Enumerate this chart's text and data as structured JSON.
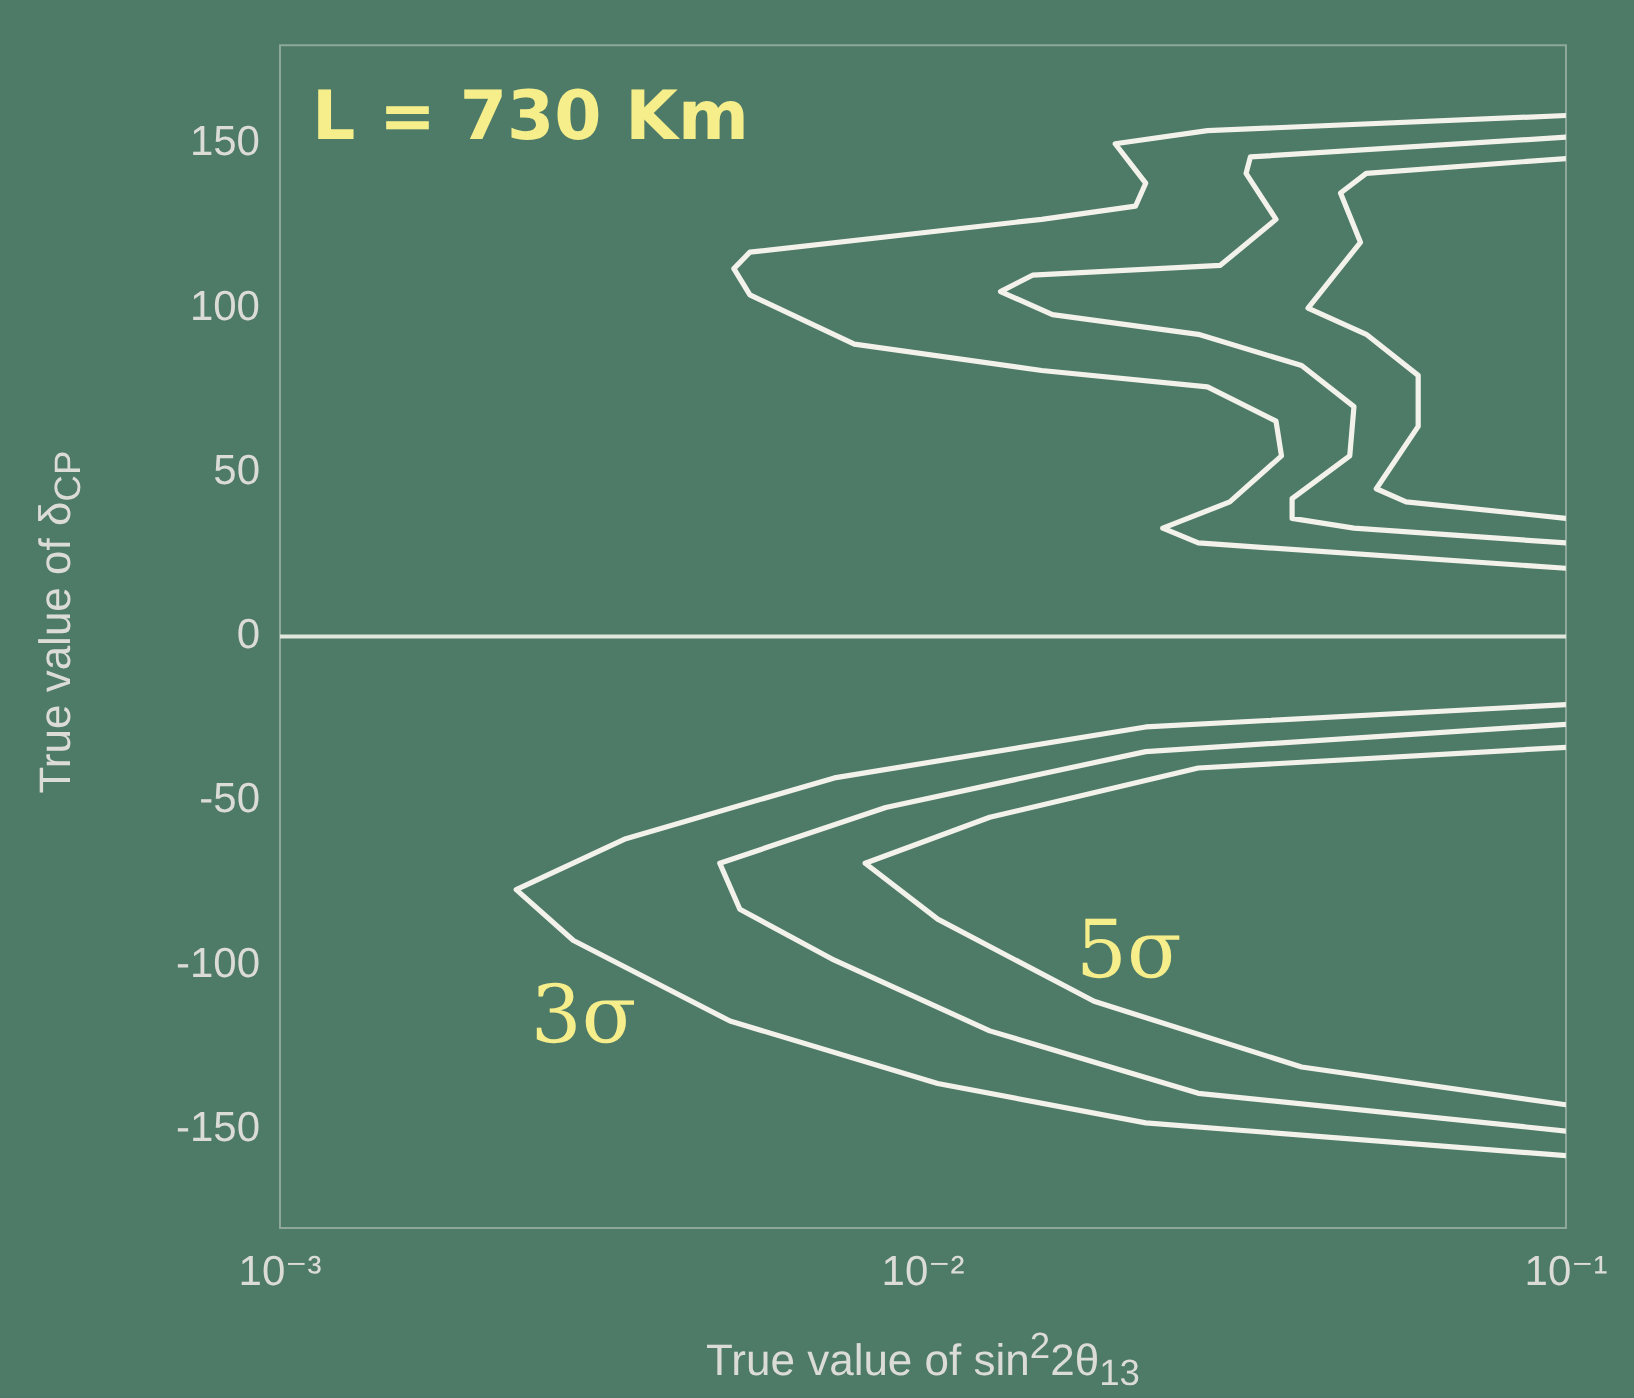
{
  "chart_data": {
    "type": "line",
    "annotations": [
      "L = 730 Km",
      "3σ",
      "5σ"
    ],
    "xlabel": "True value of sin$^{2}$2θ$_{13}$",
    "ylabel": "True value of δ$_{CP}$",
    "log": "x",
    "xlim": [
      0.001,
      0.1
    ],
    "xticks": [
      {
        "value": 0.001,
        "label": "10⁻³"
      },
      {
        "value": 0.01,
        "label": "10⁻²"
      },
      {
        "value": 0.1,
        "label": "10⁻¹"
      }
    ],
    "ylim": [
      -180,
      180
    ],
    "yticks": [
      -150,
      -100,
      -50,
      0,
      50,
      100,
      150
    ],
    "grid": false,
    "legend": false,
    "marker": "none",
    "line_style": "solid",
    "ref_lines": [
      {
        "axis": "y",
        "value": 0,
        "color": "#dfe6dc"
      }
    ],
    "series": [
      {
        "color": "#f2f2ea",
        "x": [
          0.1,
          0.0277,
          0.0199,
          0.0222,
          0.0214,
          0.0153,
          0.00538,
          0.00508,
          0.00538,
          0.00782,
          0.0153,
          0.0277,
          0.0354,
          0.0361,
          0.03,
          0.0236,
          0.0268,
          0.1
        ],
        "values": [
          158.6,
          154,
          150,
          138,
          131,
          127,
          117,
          112,
          104,
          89,
          81,
          76,
          65.6,
          55,
          41,
          33,
          28.5,
          20.8
        ]
      },
      {
        "color": "#f2f2ea",
        "x": [
          0.1,
          0.0323,
          0.0318,
          0.0354,
          0.029,
          0.0148,
          0.0132,
          0.0159,
          0.0268,
          0.0388,
          0.0468,
          0.0461,
          0.0375,
          0.0375,
          0.0468,
          0.1
        ],
        "values": [
          152,
          146,
          141,
          127,
          113,
          110,
          105,
          98,
          92,
          82.5,
          70,
          55,
          42,
          36,
          33,
          28.5
        ]
      },
      {
        "color": "#f2f2ea",
        "x": [
          0.1,
          0.0489,
          0.0446,
          0.0479,
          0.0397,
          0.0489,
          0.0589,
          0.0589,
          0.0507,
          0.0564,
          0.1
        ],
        "values": [
          145.5,
          141,
          135,
          120,
          100,
          92,
          79.5,
          64,
          45,
          41,
          36
        ]
      },
      {
        "color": "#f2f2ea",
        "x": [
          0.1,
          0.0222,
          0.00728,
          0.00345,
          0.00233,
          0.00286,
          0.00501,
          0.01054,
          0.0222,
          0.1
        ],
        "values": [
          -20.7,
          -27.5,
          -43,
          -61.5,
          -77,
          -92.5,
          -117,
          -136,
          -148,
          -158
        ]
      },
      {
        "color": "#f2f2ea",
        "x": [
          0.1,
          0.0222,
          0.00875,
          0.00483,
          0.00519,
          0.00728,
          0.0127,
          0.0268,
          0.1
        ],
        "values": [
          -26.7,
          -35,
          -52,
          -69,
          -83,
          -98.5,
          -120,
          -139,
          -150.5
        ]
      },
      {
        "color": "#f2f2ea",
        "x": [
          0.1,
          0.0268,
          0.0127,
          0.00813,
          0.01054,
          0.01845,
          0.0388,
          0.1
        ],
        "values": [
          -33.7,
          -40,
          -55,
          -69,
          -86,
          -111,
          -131,
          -142.5
        ]
      }
    ]
  }
}
